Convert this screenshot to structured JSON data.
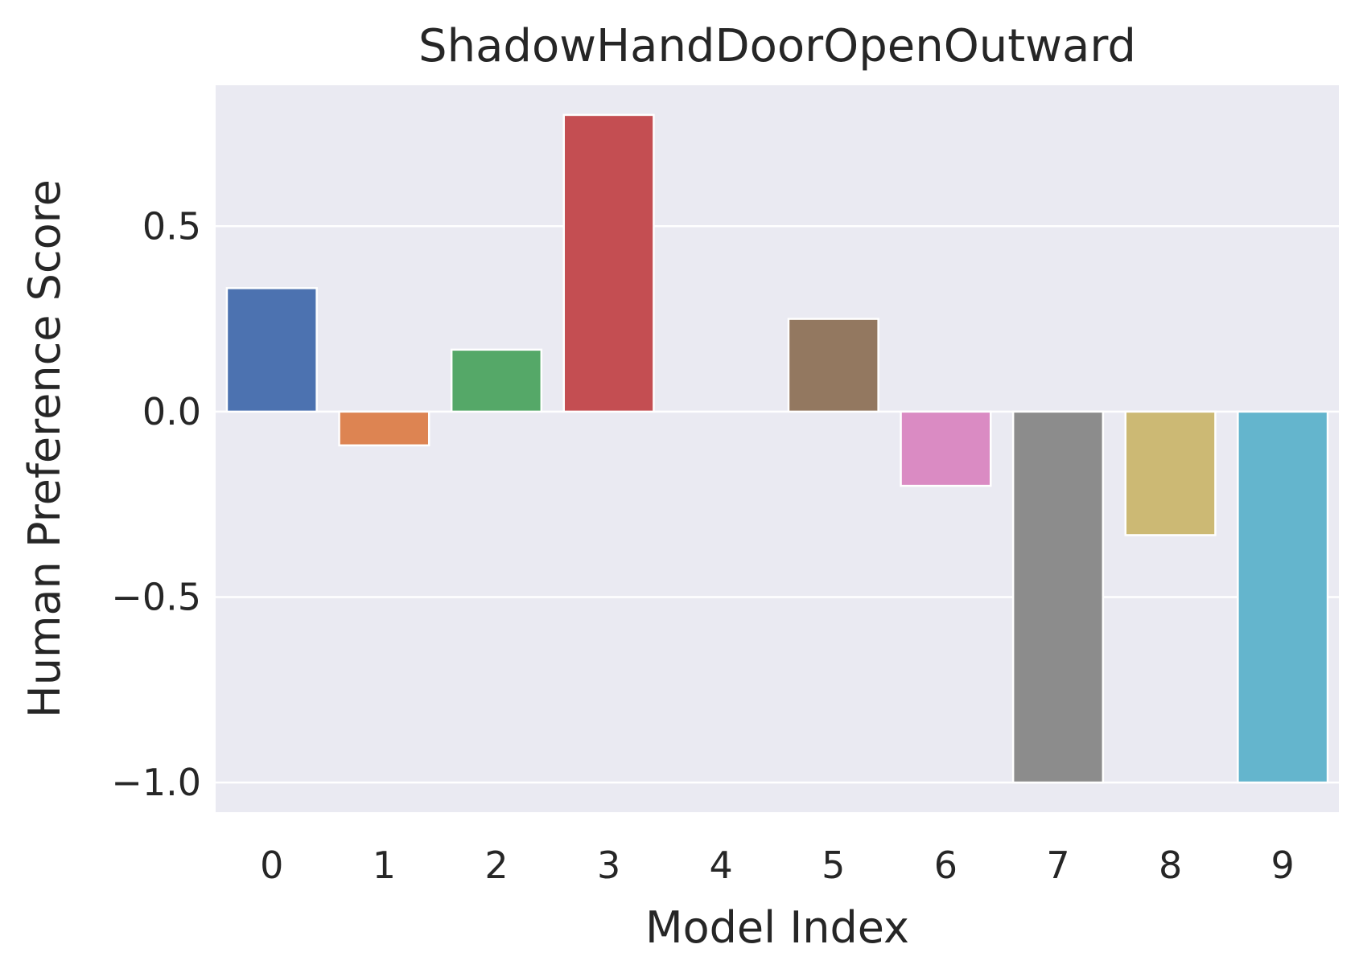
{
  "chart_data": {
    "type": "bar",
    "title": "ShadowHandDoorOpenOutward",
    "xlabel": "Model Index",
    "ylabel": "Human Preference Score",
    "categories": [
      "0",
      "1",
      "2",
      "3",
      "4",
      "5",
      "6",
      "7",
      "8",
      "9"
    ],
    "values": [
      0.333,
      -0.091,
      0.167,
      0.8,
      0.0,
      0.25,
      -0.2,
      -1.0,
      -0.333,
      -1.0
    ],
    "colors": [
      "#4c72b0",
      "#dd8452",
      "#55a868",
      "#c44e52",
      "#8172b3",
      "#937860",
      "#da8bc3",
      "#8c8c8c",
      "#ccb974",
      "#64b5cd"
    ],
    "ylim": [
      -1.08,
      0.88
    ],
    "yticks": [
      0.5,
      0.0,
      -0.5,
      -1.0
    ],
    "ytick_labels": [
      "0.5",
      "0.0",
      "−0.5",
      "−1.0"
    ],
    "grid": true,
    "background": "#eaeaf2"
  }
}
